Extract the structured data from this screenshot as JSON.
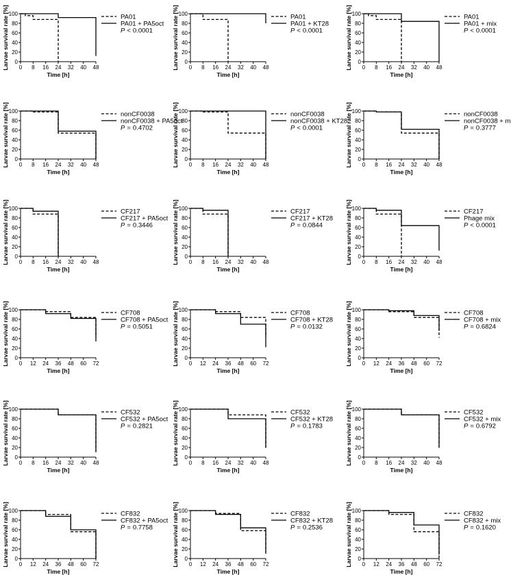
{
  "figure": {
    "ylabel": "Larvae survival rate [%]",
    "xlabel": "Time [h]",
    "p_prefix": "P"
  },
  "chart_data": [
    {
      "type": "line",
      "series": [
        {
          "name": "PA01",
          "dash": true,
          "x": [
            0,
            3,
            8,
            24
          ],
          "y": [
            100,
            96,
            88,
            0
          ]
        },
        {
          "name": "PA01 + PA5oct",
          "dash": false,
          "x": [
            0,
            24,
            48
          ],
          "y": [
            100,
            92,
            12
          ]
        }
      ],
      "p_op": "<",
      "p_num": "0.0001",
      "xlim": [
        0,
        48
      ],
      "xticks": [
        0,
        8,
        16,
        24,
        32,
        40,
        48
      ],
      "ylim": [
        0,
        100
      ],
      "yticks": [
        0,
        20,
        40,
        60,
        80,
        100
      ]
    },
    {
      "type": "line",
      "series": [
        {
          "name": "PA01",
          "dash": true,
          "x": [
            0,
            8,
            24
          ],
          "y": [
            100,
            88,
            0
          ]
        },
        {
          "name": "PA01 + KT28",
          "dash": false,
          "x": [
            0,
            48
          ],
          "y": [
            100,
            80
          ]
        }
      ],
      "p_op": "<",
      "p_num": "0.0001",
      "xlim": [
        0,
        48
      ],
      "xticks": [
        0,
        8,
        16,
        24,
        32,
        40,
        48
      ],
      "ylim": [
        0,
        100
      ],
      "yticks": [
        0,
        20,
        40,
        60,
        80,
        100
      ]
    },
    {
      "type": "line",
      "series": [
        {
          "name": "PA01",
          "dash": true,
          "x": [
            0,
            3,
            8,
            24
          ],
          "y": [
            100,
            96,
            88,
            0
          ]
        },
        {
          "name": "PA01 + mix",
          "dash": false,
          "x": [
            0,
            24,
            48
          ],
          "y": [
            100,
            84,
            0
          ]
        }
      ],
      "p_op": "<",
      "p_num": "0.0001",
      "xlim": [
        0,
        48
      ],
      "xticks": [
        0,
        8,
        16,
        24,
        32,
        40,
        48
      ],
      "ylim": [
        0,
        100
      ],
      "yticks": [
        0,
        20,
        40,
        60,
        80,
        100
      ]
    },
    {
      "type": "line",
      "series": [
        {
          "name": "nonCF0038",
          "dash": true,
          "x": [
            0,
            8,
            24,
            48
          ],
          "y": [
            100,
            98,
            54,
            0
          ]
        },
        {
          "name": "nonCF0038 + PA5oct",
          "dash": false,
          "x": [
            0,
            24,
            48
          ],
          "y": [
            100,
            58,
            0
          ]
        }
      ],
      "p_op": "=",
      "p_num": "0.4702",
      "xlim": [
        0,
        48
      ],
      "xticks": [
        0,
        8,
        16,
        24,
        32,
        40,
        48
      ],
      "ylim": [
        0,
        100
      ],
      "yticks": [
        0,
        20,
        40,
        60,
        80,
        100
      ]
    },
    {
      "type": "line",
      "series": [
        {
          "name": "nonCF0038",
          "dash": true,
          "x": [
            0,
            8,
            24,
            48
          ],
          "y": [
            100,
            98,
            54,
            0
          ]
        },
        {
          "name": "nonCF0038 + KT28",
          "dash": false,
          "x": [
            0,
            48
          ],
          "y": [
            100,
            0
          ]
        }
      ],
      "p_op": "<",
      "p_num": "0.0001",
      "xlim": [
        0,
        48
      ],
      "xticks": [
        0,
        8,
        16,
        24,
        32,
        40,
        48
      ],
      "ylim": [
        0,
        100
      ],
      "yticks": [
        0,
        20,
        40,
        60,
        80,
        100
      ]
    },
    {
      "type": "line",
      "series": [
        {
          "name": "nonCF0038",
          "dash": true,
          "x": [
            0,
            8,
            24,
            48
          ],
          "y": [
            100,
            98,
            54,
            0
          ]
        },
        {
          "name": "nonCF0038 + mix",
          "dash": false,
          "x": [
            0,
            8,
            24,
            48
          ],
          "y": [
            100,
            98,
            62,
            0
          ]
        }
      ],
      "p_op": "=",
      "p_num": "0.3777",
      "xlim": [
        0,
        48
      ],
      "xticks": [
        0,
        8,
        16,
        24,
        32,
        40,
        48
      ],
      "ylim": [
        0,
        100
      ],
      "yticks": [
        0,
        20,
        40,
        60,
        80,
        100
      ]
    },
    {
      "type": "line",
      "series": [
        {
          "name": "CF217",
          "dash": true,
          "x": [
            0,
            8,
            24
          ],
          "y": [
            100,
            88,
            0
          ]
        },
        {
          "name": "CF217 + PA5oct",
          "dash": false,
          "x": [
            0,
            8,
            24
          ],
          "y": [
            100,
            94,
            0
          ]
        }
      ],
      "p_op": "=",
      "p_num": "0.3446",
      "xlim": [
        0,
        48
      ],
      "xticks": [
        0,
        8,
        16,
        24,
        32,
        40,
        48
      ],
      "ylim": [
        0,
        100
      ],
      "yticks": [
        0,
        20,
        40,
        60,
        80,
        100
      ]
    },
    {
      "type": "line",
      "series": [
        {
          "name": "CF217",
          "dash": true,
          "x": [
            0,
            8,
            24
          ],
          "y": [
            100,
            88,
            0
          ]
        },
        {
          "name": "CF217 + KT28",
          "dash": false,
          "x": [
            0,
            8,
            24
          ],
          "y": [
            100,
            96,
            0
          ]
        }
      ],
      "p_op": "=",
      "p_num": "0.0844",
      "xlim": [
        0,
        48
      ],
      "xticks": [
        0,
        8,
        16,
        24,
        32,
        40,
        48
      ],
      "ylim": [
        0,
        100
      ],
      "yticks": [
        0,
        20,
        40,
        60,
        80,
        100
      ]
    },
    {
      "type": "line",
      "series": [
        {
          "name": "CF217",
          "dash": true,
          "x": [
            0,
            8,
            24
          ],
          "y": [
            100,
            88,
            0
          ]
        },
        {
          "name": "Phage mix",
          "dash": false,
          "x": [
            0,
            8,
            24,
            48
          ],
          "y": [
            100,
            96,
            64,
            12
          ]
        }
      ],
      "p_op": "<",
      "p_num": "0.0001",
      "xlim": [
        0,
        48
      ],
      "xticks": [
        0,
        8,
        16,
        24,
        32,
        40,
        48
      ],
      "ylim": [
        0,
        100
      ],
      "yticks": [
        0,
        20,
        40,
        60,
        80,
        100
      ]
    },
    {
      "type": "line",
      "series": [
        {
          "name": "CF708",
          "dash": true,
          "x": [
            0,
            24,
            48,
            72
          ],
          "y": [
            100,
            96,
            84,
            42
          ]
        },
        {
          "name": "CF708 + PA5oct",
          "dash": false,
          "x": [
            0,
            24,
            48,
            72
          ],
          "y": [
            100,
            92,
            82,
            34
          ]
        }
      ],
      "p_op": "=",
      "p_num": "0.5051",
      "xlim": [
        0,
        72
      ],
      "xticks": [
        0,
        12,
        24,
        36,
        48,
        60,
        72
      ],
      "ylim": [
        0,
        100
      ],
      "yticks": [
        0,
        20,
        40,
        60,
        80,
        100
      ]
    },
    {
      "type": "line",
      "series": [
        {
          "name": "CF708",
          "dash": true,
          "x": [
            0,
            24,
            48,
            72
          ],
          "y": [
            100,
            96,
            84,
            42
          ]
        },
        {
          "name": "CF708 + KT28",
          "dash": false,
          "x": [
            0,
            24,
            48,
            72
          ],
          "y": [
            100,
            92,
            70,
            22
          ]
        }
      ],
      "p_op": "=",
      "p_num": "0.0132",
      "xlim": [
        0,
        72
      ],
      "xticks": [
        0,
        12,
        24,
        36,
        48,
        60,
        72
      ],
      "ylim": [
        0,
        100
      ],
      "yticks": [
        0,
        20,
        40,
        60,
        80,
        100
      ]
    },
    {
      "type": "line",
      "series": [
        {
          "name": "CF708",
          "dash": true,
          "x": [
            0,
            24,
            48,
            72
          ],
          "y": [
            100,
            96,
            84,
            42
          ]
        },
        {
          "name": "CF708 + mix",
          "dash": false,
          "x": [
            0,
            24,
            48,
            72
          ],
          "y": [
            100,
            98,
            88,
            56
          ]
        }
      ],
      "p_op": "=",
      "p_num": "0.6824",
      "xlim": [
        0,
        72
      ],
      "xticks": [
        0,
        12,
        24,
        36,
        48,
        60,
        72
      ],
      "ylim": [
        0,
        100
      ],
      "yticks": [
        0,
        20,
        40,
        60,
        80,
        100
      ]
    },
    {
      "type": "line",
      "series": [
        {
          "name": "CF532",
          "dash": true,
          "x": [
            0,
            24,
            48
          ],
          "y": [
            100,
            88,
            10
          ]
        },
        {
          "name": "CF532 + PA5oct",
          "dash": false,
          "x": [
            0,
            24,
            48
          ],
          "y": [
            100,
            88,
            14
          ]
        }
      ],
      "p_op": "=",
      "p_num": "0.2821",
      "xlim": [
        0,
        48
      ],
      "xticks": [
        0,
        8,
        16,
        24,
        32,
        40,
        48
      ],
      "ylim": [
        0,
        100
      ],
      "yticks": [
        0,
        20,
        40,
        60,
        80,
        100
      ]
    },
    {
      "type": "line",
      "series": [
        {
          "name": "CF532",
          "dash": true,
          "x": [
            0,
            24,
            48
          ],
          "y": [
            100,
            88,
            16
          ]
        },
        {
          "name": "CF532 + KT28",
          "dash": false,
          "x": [
            0,
            24,
            48
          ],
          "y": [
            100,
            80,
            20
          ]
        }
      ],
      "p_op": "=",
      "p_num": "0.1783",
      "xlim": [
        0,
        48
      ],
      "xticks": [
        0,
        8,
        16,
        24,
        32,
        40,
        48
      ],
      "ylim": [
        0,
        100
      ],
      "yticks": [
        0,
        20,
        40,
        60,
        80,
        100
      ]
    },
    {
      "type": "line",
      "series": [
        {
          "name": "CF532",
          "dash": true,
          "x": [
            0,
            24,
            48
          ],
          "y": [
            100,
            88,
            18
          ]
        },
        {
          "name": "CF532 + mix",
          "dash": false,
          "x": [
            0,
            24,
            48
          ],
          "y": [
            100,
            88,
            22
          ]
        }
      ],
      "p_op": "=",
      "p_num": "0.6792",
      "xlim": [
        0,
        48
      ],
      "xticks": [
        0,
        8,
        16,
        24,
        32,
        40,
        48
      ],
      "ylim": [
        0,
        100
      ],
      "yticks": [
        0,
        20,
        40,
        60,
        80,
        100
      ]
    },
    {
      "type": "line",
      "series": [
        {
          "name": "CF832",
          "dash": true,
          "x": [
            0,
            24,
            48,
            72
          ],
          "y": [
            100,
            92,
            56,
            0
          ]
        },
        {
          "name": "CF832 + PA5oct",
          "dash": false,
          "x": [
            0,
            24,
            48,
            72
          ],
          "y": [
            100,
            88,
            60,
            0
          ]
        }
      ],
      "p_op": "=",
      "p_num": "0.7758",
      "xlim": [
        0,
        72
      ],
      "xticks": [
        0,
        12,
        24,
        36,
        48,
        60,
        72
      ],
      "ylim": [
        0,
        100
      ],
      "yticks": [
        0,
        20,
        40,
        60,
        80,
        100
      ]
    },
    {
      "type": "line",
      "series": [
        {
          "name": "CF832",
          "dash": true,
          "x": [
            0,
            24,
            48,
            72
          ],
          "y": [
            100,
            94,
            58,
            8
          ]
        },
        {
          "name": "CF832 + KT28",
          "dash": false,
          "x": [
            0,
            24,
            48,
            72
          ],
          "y": [
            100,
            92,
            64,
            14
          ]
        }
      ],
      "p_op": "=",
      "p_num": "0.2536",
      "xlim": [
        0,
        72
      ],
      "xticks": [
        0,
        12,
        24,
        36,
        48,
        60,
        72
      ],
      "ylim": [
        0,
        100
      ],
      "yticks": [
        0,
        20,
        40,
        60,
        80,
        100
      ]
    },
    {
      "type": "line",
      "series": [
        {
          "name": "CF832",
          "dash": true,
          "x": [
            0,
            24,
            48,
            72
          ],
          "y": [
            100,
            92,
            56,
            0
          ]
        },
        {
          "name": "CF832 + mix",
          "dash": false,
          "x": [
            0,
            24,
            48,
            72
          ],
          "y": [
            100,
            96,
            70,
            8
          ]
        }
      ],
      "p_op": "=",
      "p_num": "0.1620",
      "xlim": [
        0,
        72
      ],
      "xticks": [
        0,
        12,
        24,
        36,
        48,
        60,
        72
      ],
      "ylim": [
        0,
        100
      ],
      "yticks": [
        0,
        20,
        40,
        60,
        80,
        100
      ]
    }
  ]
}
